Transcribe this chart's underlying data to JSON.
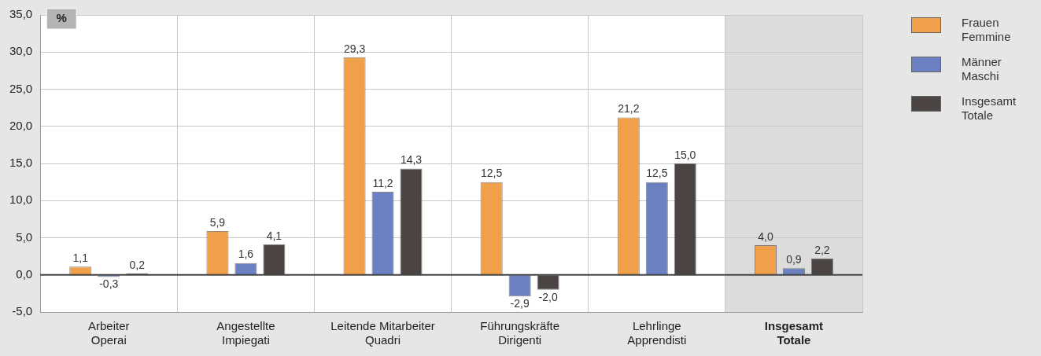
{
  "chart_data": {
    "type": "bar",
    "ylabel": "%",
    "categories": [
      "Arbeiter\nOperai",
      "Angestellte\nImpiegati",
      "Leitende Mitarbeiter\nQuadri",
      "Führungskräfte\nDirigenti",
      "Lehrlinge\nApprendisti",
      "Insgesamt\nTotale"
    ],
    "series": [
      {
        "name": "Frauen\nFemmine",
        "color": "#f0a04b",
        "values": [
          1.1,
          5.9,
          29.3,
          12.5,
          21.2,
          4.0
        ],
        "value_labels": [
          "1,1",
          "5,9",
          "29,3",
          "12,5",
          "21,2",
          "4,0"
        ]
      },
      {
        "name": "Männer\nMaschi",
        "color": "#6a80c0",
        "values": [
          -0.3,
          1.6,
          11.2,
          -2.9,
          12.5,
          0.9
        ],
        "value_labels": [
          "-0,3",
          "1,6",
          "11,2",
          "-2,9",
          "12,5",
          "0,9"
        ]
      },
      {
        "name": "Insgesamt\nTotale",
        "color": "#4a4543",
        "values": [
          0.2,
          4.1,
          14.3,
          -2.0,
          15.0,
          2.2
        ],
        "value_labels": [
          "0,2",
          "4,1",
          "14,3",
          "-2,0",
          "15,0",
          "2,2"
        ]
      }
    ],
    "ylim": [
      -5,
      35
    ],
    "yticks": [
      {
        "value": -5,
        "label": "-5,0"
      },
      {
        "value": 0,
        "label": "0,0"
      },
      {
        "value": 5,
        "label": "5,0"
      },
      {
        "value": 10,
        "label": "10,0"
      },
      {
        "value": 15,
        "label": "15,0"
      },
      {
        "value": 20,
        "label": "20,0"
      },
      {
        "value": 25,
        "label": "25,0"
      },
      {
        "value": 30,
        "label": "30,0"
      },
      {
        "value": 35,
        "label": "35,0"
      }
    ],
    "bands": [
      {
        "axis": "x",
        "from": "Insgesamt\nTotale",
        "to": "Insgesamt\nTotale",
        "color": "#dcdcdc"
      }
    ],
    "grid": true,
    "legend": "top right"
  }
}
